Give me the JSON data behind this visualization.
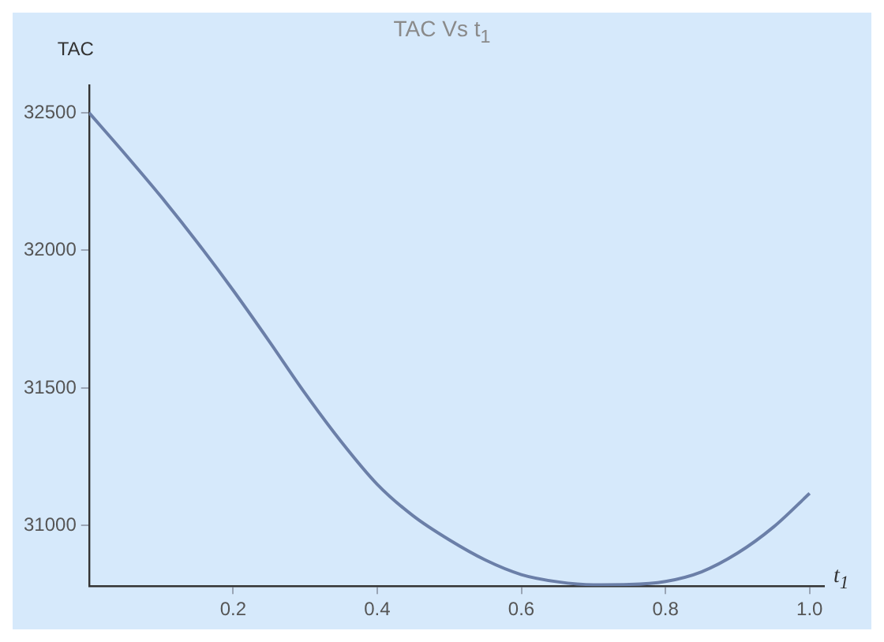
{
  "chart_data": {
    "type": "line",
    "title": "TAC Vs t$_{1}$",
    "xlabel": "t$_{1}$",
    "ylabel": "TAC",
    "x": [
      0,
      0.05,
      0.1,
      0.15,
      0.2,
      0.25,
      0.3,
      0.35,
      0.4,
      0.45,
      0.5,
      0.55,
      0.6,
      0.65,
      0.7,
      0.75,
      0.8,
      0.85,
      0.9,
      0.95,
      1.0
    ],
    "series": [
      {
        "color": "#6b7fa8",
        "values": [
          32500,
          32350,
          32195,
          32030,
          31855,
          31670,
          31480,
          31305,
          31150,
          31035,
          30948,
          30875,
          30822,
          30796,
          30785,
          30786,
          30797,
          30832,
          30900,
          30995,
          31117
        ]
      }
    ],
    "xlim": [
      0,
      1.02
    ],
    "ylim": [
      30780,
      32600
    ],
    "xticks": [
      0.2,
      0.4,
      0.6,
      0.8,
      {
        "value": 1.0,
        "label": "1.0"
      }
    ],
    "yticks": [
      31000,
      31500,
      32000,
      32500
    ],
    "grid": false,
    "legend": false,
    "marker": "none",
    "line_style": "solid"
  }
}
